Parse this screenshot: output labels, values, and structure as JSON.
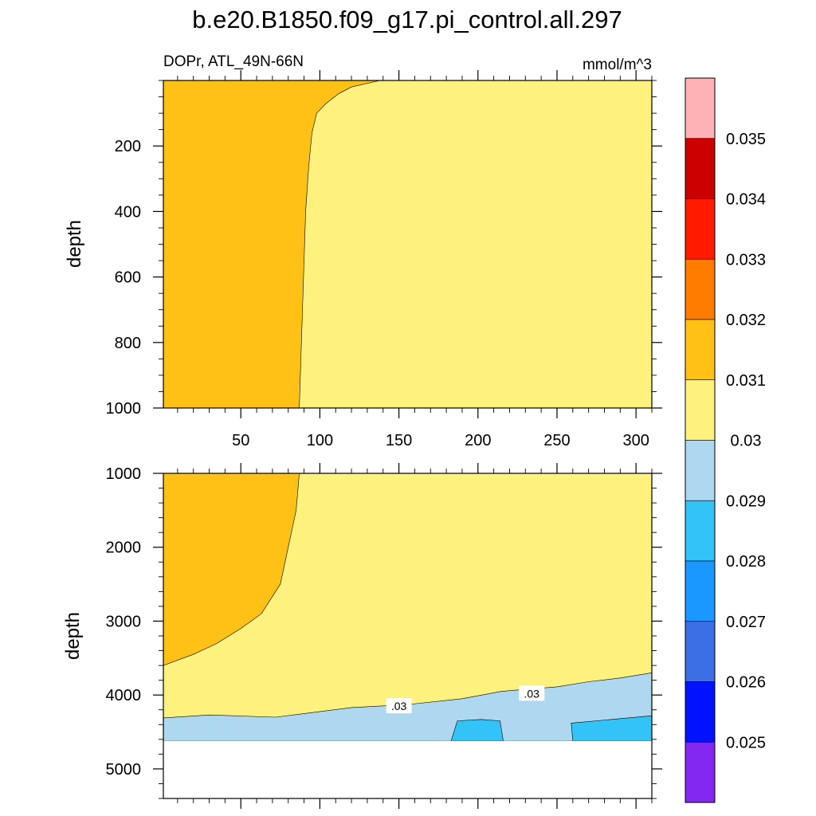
{
  "title": "b.e20.B1850.f09_g17.pi_control.all.297",
  "subtitle_left": "DOPr, ATL_49N-66N",
  "subtitle_right": "mmol/m^3",
  "colors": {
    "band_0029_003": "#add8f0",
    "band_003_0031": "#fff17d",
    "band_0031_0032": "#ffc115",
    "band_0028_0029": "#34c3f8"
  },
  "chart_data": [
    {
      "type": "heatmap",
      "panel": "upper",
      "ylabel": "depth",
      "xlabel": "",
      "xlim": [
        1,
        310
      ],
      "ylim": [
        1000,
        0
      ],
      "x_ticks": [
        "50",
        "100",
        "150",
        "200",
        "250",
        "300"
      ],
      "y_ticks": [
        "200",
        "400",
        "600",
        "800",
        "1000"
      ],
      "regions": [
        {
          "range": [
            0.031,
            0.032
          ],
          "boundary_x": [
            138,
            120,
            112,
            104,
            98,
            95,
            93,
            91,
            90,
            89,
            88,
            87
          ],
          "boundary_depth": [
            0,
            20,
            40,
            70,
            100,
            160,
            260,
            400,
            550,
            700,
            850,
            1000
          ]
        },
        {
          "range": [
            0.03,
            0.031
          ]
        }
      ]
    },
    {
      "type": "heatmap",
      "panel": "lower",
      "ylabel": "depth",
      "xlabel": "",
      "xlim": [
        1,
        310
      ],
      "ylim": [
        5400,
        1000
      ],
      "x_ticks": [],
      "y_ticks": [
        "1000",
        "2000",
        "3000",
        "4000",
        "5000"
      ],
      "data_bottom_depth": 4620,
      "contour_labels": [
        {
          "text": ".03",
          "x": 150,
          "depth": 4150
        },
        {
          "text": ".03",
          "x": 234,
          "depth": 3980
        }
      ],
      "regions": [
        {
          "range": [
            0.031,
            0.032
          ],
          "boundary_x": [
            87,
            85,
            80,
            75,
            63,
            50,
            35,
            20,
            1
          ],
          "boundary_depth": [
            1000,
            1500,
            2000,
            2500,
            2900,
            3100,
            3300,
            3450,
            3600
          ]
        },
        {
          "range": [
            0.03,
            0.031
          ]
        },
        {
          "range": [
            0.029,
            0.03
          ],
          "boundary_x": [
            1,
            30,
            72,
            120,
            155,
            190,
            215,
            250,
            270,
            290,
            310
          ],
          "boundary_depth": [
            4310,
            4270,
            4300,
            4170,
            4130,
            4050,
            3950,
            3890,
            3820,
            3770,
            3700
          ]
        },
        {
          "range": [
            0.028,
            0.029
          ],
          "patches": [
            {
              "x": [
                183,
                187,
                202,
                214,
                216
              ],
              "depth": [
                4620,
                4350,
                4330,
                4350,
                4620
              ]
            },
            {
              "x": [
                260,
                259,
                290,
                310,
                310
              ],
              "depth": [
                4620,
                4380,
                4320,
                4280,
                4620
              ]
            }
          ]
        }
      ]
    }
  ],
  "colorbar": {
    "labels": [
      "0.025",
      "0.026",
      "0.027",
      "0.028",
      "0.029",
      "0.03",
      "0.031",
      "0.032",
      "0.033",
      "0.034",
      "0.035"
    ],
    "colors": [
      "#ffb2b5",
      "#cc0000",
      "#ff1a00",
      "#ff7c00",
      "#ffc115",
      "#fff17d",
      "#add8f0",
      "#34c3f8",
      "#1a98ff",
      "#3c6ee6",
      "#0012ff",
      "#8228f0"
    ]
  }
}
